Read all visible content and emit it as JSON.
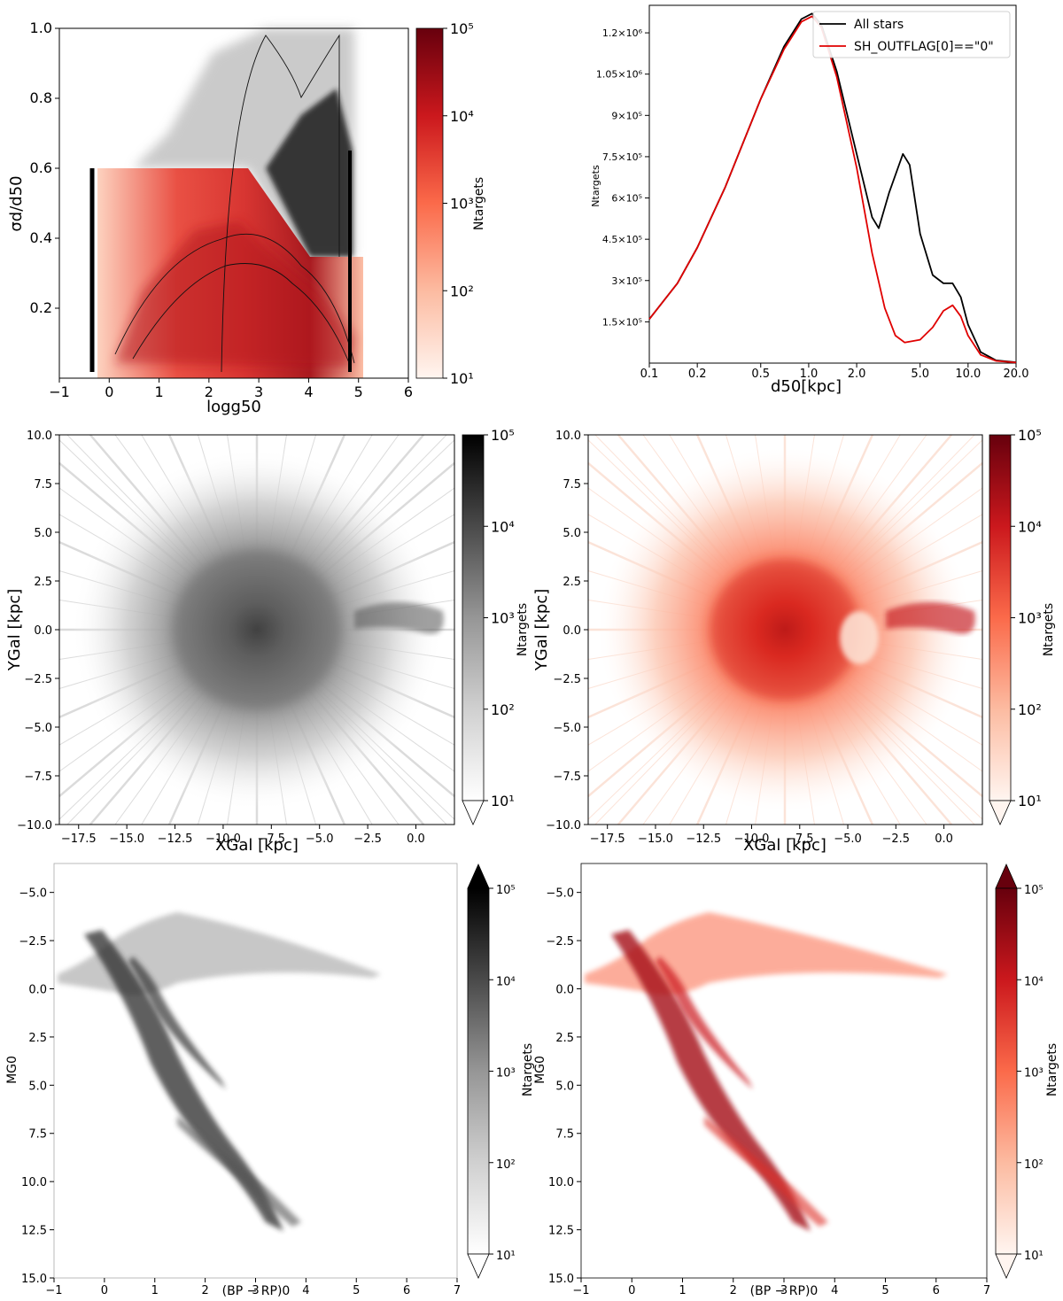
{
  "chart_data": [
    {
      "type": "heatmap",
      "panel": "top-left",
      "xlabel": "logg50",
      "ylabel": "σd/d50",
      "xlim": [
        -1,
        6
      ],
      "ylim": [
        0,
        1.0
      ],
      "x_ticks": [
        "−1",
        "0",
        "1",
        "2",
        "3",
        "4",
        "5",
        "6"
      ],
      "y_ticks": [
        "0.2",
        "0.4",
        "0.6",
        "0.8",
        "1.0"
      ],
      "colorbar": {
        "label": "Ntargets",
        "ticks": [
          "10¹",
          "10²",
          "10³",
          "10⁴",
          "10⁵"
        ],
        "scale": "log",
        "range": [
          10,
          100000
        ],
        "colormap": "Reds"
      },
      "overlay": "black contour lines and grey density for all stars",
      "colors": {
        "red": "#b3151b",
        "grey": "#2b2b2b"
      }
    },
    {
      "type": "line",
      "panel": "top-right",
      "xlabel": "d50[kpc]",
      "ylabel": "Ntargets",
      "xscale": "log",
      "xlim": [
        0.1,
        20.0
      ],
      "ylim": [
        0,
        1300000
      ],
      "x_ticks": [
        "0.1",
        "0.2",
        "0.5",
        "1.0",
        "2.0",
        "5.0",
        "10.0",
        "20.0"
      ],
      "y_ticks": [
        "1.5×10⁵",
        "3×10⁵",
        "4.5×10⁵",
        "6×10⁵",
        "7.5×10⁵",
        "9×10⁵",
        "1.05×10⁶",
        "1.2×10⁶"
      ],
      "legend_position": "top-right",
      "series": [
        {
          "name": "All stars",
          "color": "#000000",
          "points": [
            [
              0.1,
              160000
            ],
            [
              0.15,
              290000
            ],
            [
              0.2,
              420000
            ],
            [
              0.3,
              640000
            ],
            [
              0.5,
              960000
            ],
            [
              0.7,
              1150000
            ],
            [
              0.9,
              1250000
            ],
            [
              1.05,
              1270000
            ],
            [
              1.2,
              1230000
            ],
            [
              1.5,
              1060000
            ],
            [
              2.0,
              760000
            ],
            [
              2.5,
              530000
            ],
            [
              2.75,
              490000
            ],
            [
              3.2,
              620000
            ],
            [
              3.9,
              760000
            ],
            [
              4.3,
              720000
            ],
            [
              5.0,
              470000
            ],
            [
              6.0,
              320000
            ],
            [
              7.0,
              290000
            ],
            [
              8.0,
              290000
            ],
            [
              9.0,
              240000
            ],
            [
              10.0,
              140000
            ],
            [
              12.0,
              40000
            ],
            [
              15.0,
              10000
            ],
            [
              20.0,
              3000
            ]
          ]
        },
        {
          "name": "SH_OUTFLAG[0]==\"0\"",
          "color": "#e00000",
          "points": [
            [
              0.1,
              160000
            ],
            [
              0.15,
              290000
            ],
            [
              0.2,
              420000
            ],
            [
              0.3,
              640000
            ],
            [
              0.5,
              960000
            ],
            [
              0.7,
              1140000
            ],
            [
              0.9,
              1240000
            ],
            [
              1.05,
              1260000
            ],
            [
              1.2,
              1220000
            ],
            [
              1.5,
              1040000
            ],
            [
              2.0,
              710000
            ],
            [
              2.5,
              400000
            ],
            [
              3.0,
              200000
            ],
            [
              3.5,
              100000
            ],
            [
              4.0,
              75000
            ],
            [
              5.0,
              85000
            ],
            [
              6.0,
              130000
            ],
            [
              7.0,
              190000
            ],
            [
              8.0,
              210000
            ],
            [
              9.0,
              170000
            ],
            [
              10.0,
              100000
            ],
            [
              12.0,
              30000
            ],
            [
              15.0,
              8000
            ],
            [
              20.0,
              2000
            ]
          ]
        }
      ]
    },
    {
      "type": "heatmap",
      "panel": "middle-left",
      "xlabel": "XGal [kpc]",
      "ylabel": "YGal [kpc]",
      "xlim": [
        -18.5,
        2
      ],
      "ylim": [
        -10,
        10
      ],
      "x_ticks": [
        "−17.5",
        "−15.0",
        "−12.5",
        "−10.0",
        "−7.5",
        "−5.0",
        "−2.5",
        "0.0"
      ],
      "y_ticks": [
        "−10.0",
        "−7.5",
        "−5.0",
        "−2.5",
        "0.0",
        "2.5",
        "5.0",
        "7.5",
        "10.0"
      ],
      "colorbar": {
        "label": "Ntargets",
        "ticks": [
          "10¹",
          "10²",
          "10³",
          "10⁴",
          "10⁵"
        ],
        "scale": "log",
        "range": [
          10,
          100000
        ],
        "colormap": "Greys"
      }
    },
    {
      "type": "heatmap",
      "panel": "middle-right",
      "xlabel": "XGal [kpc]",
      "ylabel": "YGal [kpc]",
      "xlim": [
        -18.5,
        2
      ],
      "ylim": [
        -10,
        10
      ],
      "x_ticks": [
        "−17.5",
        "−15.0",
        "−12.5",
        "−10.0",
        "−7.5",
        "−5.0",
        "−2.5",
        "0.0"
      ],
      "y_ticks": [
        "−10.0",
        "−7.5",
        "−5.0",
        "−2.5",
        "0.0",
        "2.5",
        "5.0",
        "7.5",
        "10.0"
      ],
      "colorbar": {
        "label": "Ntargets",
        "ticks": [
          "10¹",
          "10²",
          "10³",
          "10⁴",
          "10⁵"
        ],
        "scale": "log",
        "range": [
          10,
          100000
        ],
        "colormap": "Reds"
      }
    },
    {
      "type": "heatmap",
      "panel": "bottom-left",
      "xlabel": "(BP − RP)0",
      "ylabel": "MG0",
      "xlim": [
        -1,
        7
      ],
      "ylim": [
        15.0,
        -6.5
      ],
      "x_ticks": [
        "−1",
        "0",
        "1",
        "2",
        "3",
        "4",
        "5",
        "6",
        "7"
      ],
      "y_ticks": [
        "−5.0",
        "−2.5",
        "0.0",
        "2.5",
        "5.0",
        "7.5",
        "10.0",
        "12.5",
        "15.0"
      ],
      "colorbar": {
        "label": "Ntargets",
        "ticks": [
          "10¹",
          "10²",
          "10³",
          "10⁴",
          "10⁵"
        ],
        "scale": "log",
        "range": [
          10,
          100000
        ],
        "colormap": "Greys"
      }
    },
    {
      "type": "heatmap",
      "panel": "bottom-right",
      "xlabel": "(BP − RP)0",
      "ylabel": "MG0",
      "xlim": [
        -1,
        7
      ],
      "ylim": [
        15.0,
        -6.5
      ],
      "x_ticks": [
        "−1",
        "0",
        "1",
        "2",
        "3",
        "4",
        "5",
        "6",
        "7"
      ],
      "y_ticks": [
        "−5.0",
        "−2.5",
        "0.0",
        "2.5",
        "5.0",
        "7.5",
        "10.0",
        "12.5",
        "15.0"
      ],
      "colorbar": {
        "label": "Ntargets",
        "ticks": [
          "10¹",
          "10²",
          "10³",
          "10⁴",
          "10⁵"
        ],
        "scale": "log",
        "range": [
          10,
          100000
        ],
        "colormap": "Reds"
      }
    }
  ]
}
